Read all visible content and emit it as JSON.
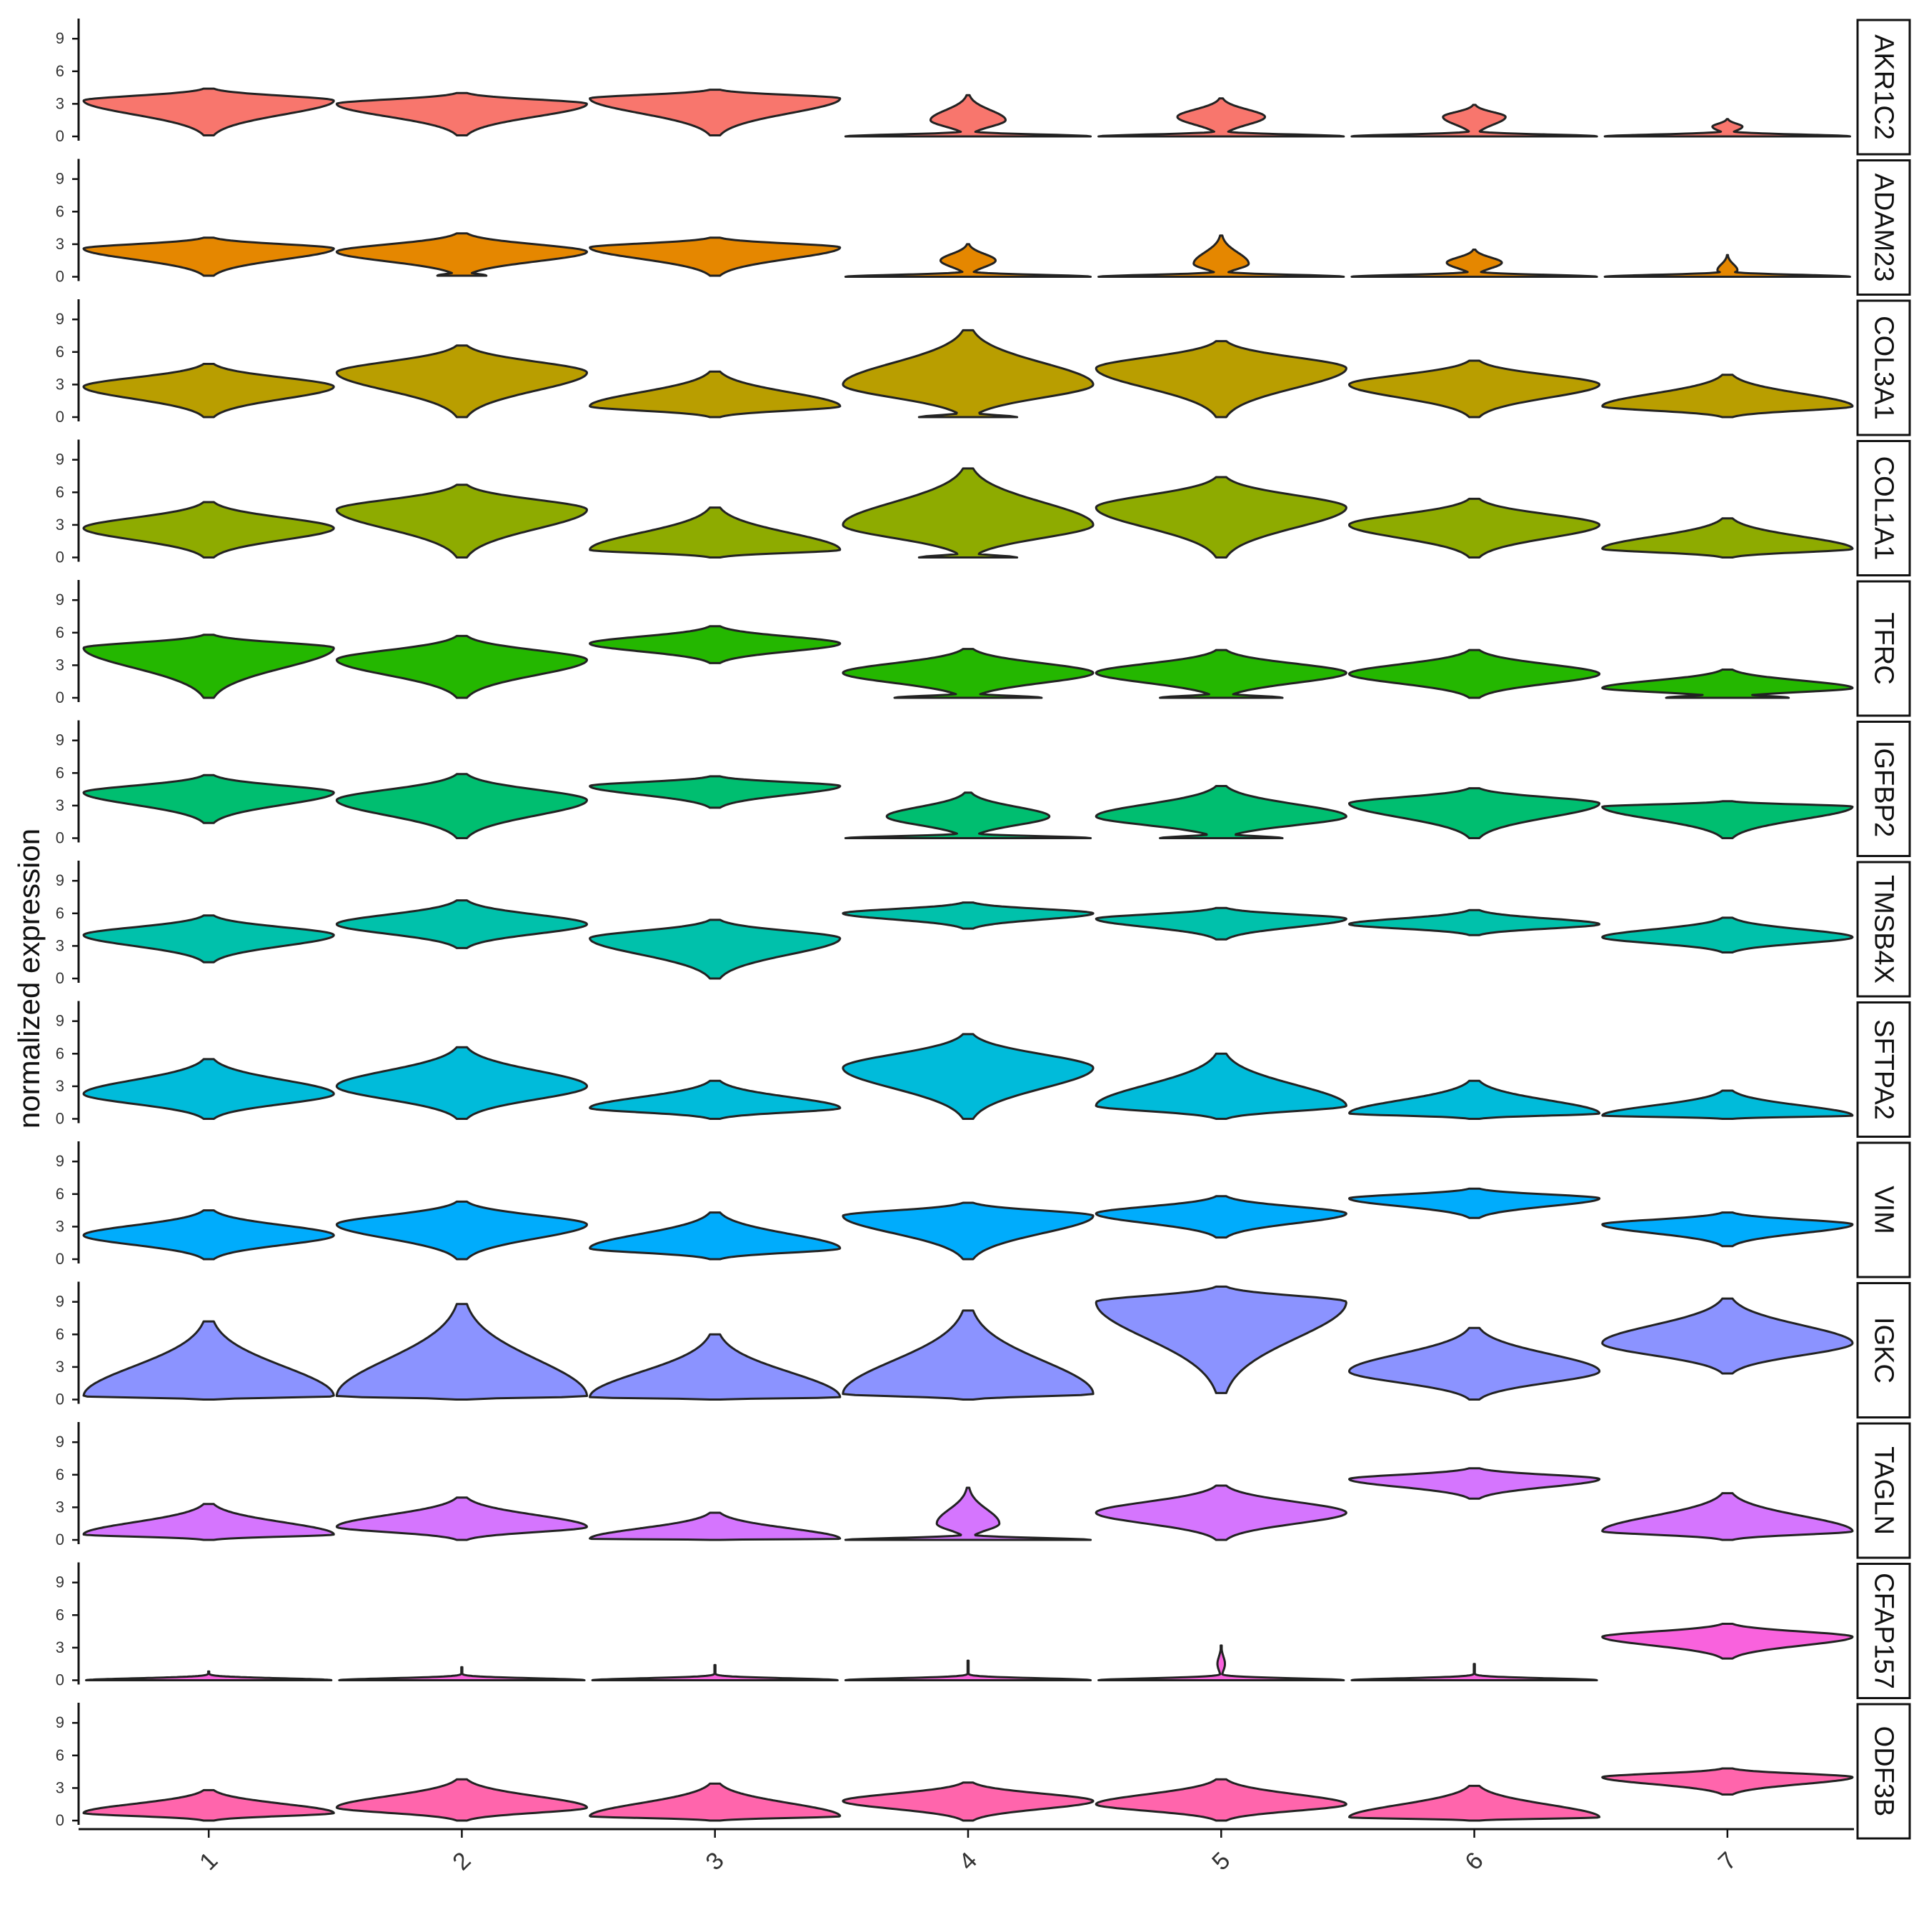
{
  "chart_data": {
    "type": "violin",
    "ylabel": "normalized expression",
    "xlabel": "",
    "categories": [
      "1",
      "2",
      "3",
      "4",
      "5",
      "6",
      "7"
    ],
    "y_ticks": [
      0,
      3,
      6,
      9
    ],
    "ylim": [
      0,
      11
    ],
    "grid": false,
    "panels": [
      {
        "gene": "AKR1C2",
        "color": "#F8766D",
        "violins": [
          {
            "min": 0.1,
            "max": 4.4,
            "mode": 3.3,
            "hw": 1.0,
            "floor": 0.0
          },
          {
            "min": 0.1,
            "max": 4.0,
            "mode": 3.0,
            "hw": 1.0,
            "floor": 0.0
          },
          {
            "min": 0.1,
            "max": 4.3,
            "mode": 3.5,
            "hw": 1.0,
            "floor": 0.0
          },
          {
            "min": 0.0,
            "max": 3.8,
            "mode": 1.5,
            "hw": 0.3,
            "floor": 1.0
          },
          {
            "min": 0.0,
            "max": 3.5,
            "mode": 1.8,
            "hw": 0.35,
            "floor": 1.0
          },
          {
            "min": 0.0,
            "max": 2.9,
            "mode": 1.8,
            "hw": 0.25,
            "floor": 1.0
          },
          {
            "min": 0.0,
            "max": 1.6,
            "mode": 0.9,
            "hw": 0.12,
            "floor": 1.0
          }
        ]
      },
      {
        "gene": "ADAM23",
        "color": "#E58700",
        "violins": [
          {
            "min": 0.1,
            "max": 3.6,
            "mode": 2.6,
            "hw": 1.0,
            "floor": 0.0
          },
          {
            "min": 0.1,
            "max": 4.0,
            "mode": 2.3,
            "hw": 1.0,
            "floor": 0.2
          },
          {
            "min": 0.1,
            "max": 3.6,
            "mode": 2.7,
            "hw": 1.0,
            "floor": 0.0
          },
          {
            "min": 0.0,
            "max": 3.0,
            "mode": 1.5,
            "hw": 0.22,
            "floor": 1.0
          },
          {
            "min": 0.0,
            "max": 3.8,
            "mode": 1.2,
            "hw": 0.22,
            "floor": 1.0
          },
          {
            "min": 0.0,
            "max": 2.5,
            "mode": 1.3,
            "hw": 0.22,
            "floor": 1.0
          },
          {
            "min": 0.0,
            "max": 2.0,
            "mode": 0.6,
            "hw": 0.08,
            "floor": 1.0
          }
        ]
      },
      {
        "gene": "COL3A1",
        "color": "#B99E00",
        "violins": [
          {
            "min": 0.0,
            "max": 4.9,
            "mode": 2.8,
            "hw": 1.0,
            "floor": 0.0
          },
          {
            "min": 0.0,
            "max": 6.6,
            "mode": 4.1,
            "hw": 1.0,
            "floor": 0.0
          },
          {
            "min": 0.0,
            "max": 4.2,
            "mode": 1.0,
            "hw": 1.0,
            "floor": 0.0
          },
          {
            "min": 0.0,
            "max": 8.0,
            "mode": 3.0,
            "hw": 1.0,
            "floor": 0.4
          },
          {
            "min": 0.0,
            "max": 7.0,
            "mode": 4.5,
            "hw": 1.0,
            "floor": 0.0
          },
          {
            "min": 0.0,
            "max": 5.2,
            "mode": 3.0,
            "hw": 1.0,
            "floor": 0.0
          },
          {
            "min": 0.0,
            "max": 3.9,
            "mode": 1.0,
            "hw": 1.0,
            "floor": 0.0
          }
        ]
      },
      {
        "gene": "COL1A1",
        "color": "#8EAB00",
        "violins": [
          {
            "min": 0.0,
            "max": 5.1,
            "mode": 2.7,
            "hw": 1.0,
            "floor": 0.0
          },
          {
            "min": 0.0,
            "max": 6.7,
            "mode": 4.4,
            "hw": 1.0,
            "floor": 0.0
          },
          {
            "min": 0.0,
            "max": 4.6,
            "mode": 0.7,
            "hw": 1.0,
            "floor": 0.0
          },
          {
            "min": 0.0,
            "max": 8.2,
            "mode": 3.0,
            "hw": 1.0,
            "floor": 0.4
          },
          {
            "min": 0.0,
            "max": 7.4,
            "mode": 4.6,
            "hw": 1.0,
            "floor": 0.0
          },
          {
            "min": 0.0,
            "max": 5.4,
            "mode": 3.0,
            "hw": 1.0,
            "floor": 0.0
          },
          {
            "min": 0.0,
            "max": 3.6,
            "mode": 0.8,
            "hw": 1.0,
            "floor": 0.0
          }
        ]
      },
      {
        "gene": "TFRC",
        "color": "#24B700",
        "violins": [
          {
            "min": 0.0,
            "max": 5.8,
            "mode": 4.6,
            "hw": 1.0,
            "floor": 0.0
          },
          {
            "min": 0.0,
            "max": 5.7,
            "mode": 3.5,
            "hw": 1.0,
            "floor": 0.0
          },
          {
            "min": 3.2,
            "max": 6.6,
            "mode": 5.0,
            "hw": 1.0,
            "floor": 0.0
          },
          {
            "min": 0.0,
            "max": 4.5,
            "mode": 2.3,
            "hw": 1.0,
            "floor": 0.6
          },
          {
            "min": 0.0,
            "max": 4.4,
            "mode": 2.3,
            "hw": 1.0,
            "floor": 0.5
          },
          {
            "min": 0.0,
            "max": 4.4,
            "mode": 2.2,
            "hw": 1.0,
            "floor": 0.0
          },
          {
            "min": 0.0,
            "max": 2.6,
            "mode": 0.9,
            "hw": 1.0,
            "floor": 0.5
          }
        ]
      },
      {
        "gene": "IGFBP2",
        "color": "#00BE70",
        "violins": [
          {
            "min": 1.4,
            "max": 5.8,
            "mode": 4.2,
            "hw": 1.0,
            "floor": 0.0
          },
          {
            "min": 0.0,
            "max": 5.9,
            "mode": 3.5,
            "hw": 1.0,
            "floor": 0.0
          },
          {
            "min": 2.8,
            "max": 5.7,
            "mode": 4.8,
            "hw": 1.0,
            "floor": 0.0
          },
          {
            "min": 0.0,
            "max": 4.2,
            "mode": 2.0,
            "hw": 0.65,
            "floor": 1.0
          },
          {
            "min": 0.0,
            "max": 4.8,
            "mode": 2.0,
            "hw": 1.0,
            "floor": 0.5
          },
          {
            "min": 0.0,
            "max": 4.6,
            "mode": 3.2,
            "hw": 1.0,
            "floor": 0.0
          },
          {
            "min": 0.0,
            "max": 3.4,
            "mode": 2.9,
            "hw": 1.0,
            "floor": 0.0
          }
        ]
      },
      {
        "gene": "TMSB4X",
        "color": "#00C1AB",
        "violins": [
          {
            "min": 1.5,
            "max": 5.8,
            "mode": 4.0,
            "hw": 1.0,
            "floor": 0.0
          },
          {
            "min": 2.8,
            "max": 7.2,
            "mode": 5.0,
            "hw": 1.0,
            "floor": 0.0
          },
          {
            "min": 0.0,
            "max": 5.4,
            "mode": 3.7,
            "hw": 1.0,
            "floor": 0.0
          },
          {
            "min": 4.6,
            "max": 7.0,
            "mode": 6.0,
            "hw": 1.0,
            "floor": 0.0
          },
          {
            "min": 3.6,
            "max": 6.5,
            "mode": 5.5,
            "hw": 1.0,
            "floor": 0.0
          },
          {
            "min": 4.0,
            "max": 6.3,
            "mode": 5.0,
            "hw": 1.0,
            "floor": 0.0
          },
          {
            "min": 2.4,
            "max": 5.6,
            "mode": 3.8,
            "hw": 1.0,
            "floor": 0.0
          }
        ]
      },
      {
        "gene": "SFTPA2",
        "color": "#00BBDA",
        "violins": [
          {
            "min": 0.0,
            "max": 5.5,
            "mode": 2.3,
            "hw": 1.0,
            "floor": 0.0
          },
          {
            "min": 0.0,
            "max": 6.6,
            "mode": 3.0,
            "hw": 1.0,
            "floor": 0.0
          },
          {
            "min": 0.0,
            "max": 3.5,
            "mode": 1.0,
            "hw": 1.0,
            "floor": 0.0
          },
          {
            "min": 0.0,
            "max": 7.8,
            "mode": 4.7,
            "hw": 1.0,
            "floor": 0.0
          },
          {
            "min": 0.0,
            "max": 6.0,
            "mode": 1.2,
            "hw": 1.0,
            "floor": 0.0
          },
          {
            "min": 0.0,
            "max": 3.5,
            "mode": 0.5,
            "hw": 1.0,
            "floor": 0.0
          },
          {
            "min": 0.0,
            "max": 2.6,
            "mode": 0.3,
            "hw": 1.0,
            "floor": 0.0
          }
        ]
      },
      {
        "gene": "VIM",
        "color": "#00ACFC",
        "violins": [
          {
            "min": 0.0,
            "max": 4.5,
            "mode": 2.2,
            "hw": 1.0,
            "floor": 0.0
          },
          {
            "min": 0.0,
            "max": 5.3,
            "mode": 3.2,
            "hw": 1.0,
            "floor": 0.0
          },
          {
            "min": 0.0,
            "max": 4.3,
            "mode": 1.0,
            "hw": 1.0,
            "floor": 0.0
          },
          {
            "min": 0.0,
            "max": 5.2,
            "mode": 4.0,
            "hw": 1.0,
            "floor": 0.0
          },
          {
            "min": 2.0,
            "max": 5.8,
            "mode": 4.2,
            "hw": 1.0,
            "floor": 0.0
          },
          {
            "min": 3.8,
            "max": 6.5,
            "mode": 5.6,
            "hw": 1.0,
            "floor": 0.0
          },
          {
            "min": 1.2,
            "max": 4.3,
            "mode": 3.2,
            "hw": 1.0,
            "floor": 0.0
          }
        ]
      },
      {
        "gene": "IGKC",
        "color": "#8B93FF",
        "violins": [
          {
            "min": 0.0,
            "max": 7.2,
            "mode": 0.3,
            "hw": 1.0,
            "floor": 0.0
          },
          {
            "min": 0.0,
            "max": 8.8,
            "mode": 0.3,
            "hw": 1.0,
            "floor": 0.0
          },
          {
            "min": 0.0,
            "max": 6.0,
            "mode": 0.2,
            "hw": 1.0,
            "floor": 0.0
          },
          {
            "min": 0.0,
            "max": 8.2,
            "mode": 0.5,
            "hw": 1.0,
            "floor": 0.0
          },
          {
            "min": 0.6,
            "max": 10.4,
            "mode": 9.0,
            "hw": 1.0,
            "floor": 0.0
          },
          {
            "min": 0.0,
            "max": 6.6,
            "mode": 2.6,
            "hw": 1.0,
            "floor": 0.0
          },
          {
            "min": 2.4,
            "max": 9.3,
            "mode": 5.2,
            "hw": 1.0,
            "floor": 0.0
          }
        ]
      },
      {
        "gene": "TAGLN",
        "color": "#D575FE",
        "violins": [
          {
            "min": 0.0,
            "max": 3.3,
            "mode": 0.5,
            "hw": 1.0,
            "floor": 0.0
          },
          {
            "min": 0.0,
            "max": 3.9,
            "mode": 1.2,
            "hw": 1.0,
            "floor": 0.0
          },
          {
            "min": 0.0,
            "max": 2.5,
            "mode": 0.1,
            "hw": 1.0,
            "floor": 0.0
          },
          {
            "min": 0.0,
            "max": 4.8,
            "mode": 1.5,
            "hw": 0.25,
            "floor": 1.0
          },
          {
            "min": 0.0,
            "max": 5.0,
            "mode": 2.5,
            "hw": 1.0,
            "floor": 0.0
          },
          {
            "min": 3.8,
            "max": 6.6,
            "mode": 5.6,
            "hw": 1.0,
            "floor": 0.0
          },
          {
            "min": 0.0,
            "max": 4.3,
            "mode": 0.8,
            "hw": 1.0,
            "floor": 0.0
          }
        ]
      },
      {
        "gene": "CFAP157",
        "color": "#F962DD",
        "violins": [
          {
            "min": 0.0,
            "max": 0.8,
            "mode": 0.0,
            "hw": 0.0,
            "floor": 1.0
          },
          {
            "min": 0.0,
            "max": 1.2,
            "mode": 0.0,
            "hw": 0.0,
            "floor": 1.0
          },
          {
            "min": 0.0,
            "max": 1.4,
            "mode": 0.0,
            "hw": 0.0,
            "floor": 1.0
          },
          {
            "min": 0.0,
            "max": 1.8,
            "mode": 0.0,
            "hw": 0.0,
            "floor": 1.0
          },
          {
            "min": 0.0,
            "max": 3.2,
            "mode": 1.5,
            "hw": 0.03,
            "floor": 1.0
          },
          {
            "min": 0.0,
            "max": 1.5,
            "mode": 0.0,
            "hw": 0.0,
            "floor": 1.0
          },
          {
            "min": 2.0,
            "max": 5.2,
            "mode": 4.0,
            "hw": 1.0,
            "floor": 0.0
          }
        ]
      },
      {
        "gene": "ODF3B",
        "color": "#FF65AC",
        "violins": [
          {
            "min": 0.0,
            "max": 2.8,
            "mode": 0.7,
            "hw": 1.0,
            "floor": 0.0
          },
          {
            "min": 0.0,
            "max": 3.8,
            "mode": 1.2,
            "hw": 1.0,
            "floor": 0.0
          },
          {
            "min": 0.0,
            "max": 3.4,
            "mode": 0.4,
            "hw": 1.0,
            "floor": 0.0
          },
          {
            "min": 0.0,
            "max": 3.5,
            "mode": 1.8,
            "hw": 1.0,
            "floor": 0.0
          },
          {
            "min": 0.0,
            "max": 3.8,
            "mode": 1.5,
            "hw": 1.0,
            "floor": 0.0
          },
          {
            "min": 0.0,
            "max": 3.2,
            "mode": 0.3,
            "hw": 1.0,
            "floor": 0.0
          },
          {
            "min": 2.4,
            "max": 4.8,
            "mode": 4.0,
            "hw": 1.0,
            "floor": 0.0
          }
        ]
      }
    ]
  }
}
